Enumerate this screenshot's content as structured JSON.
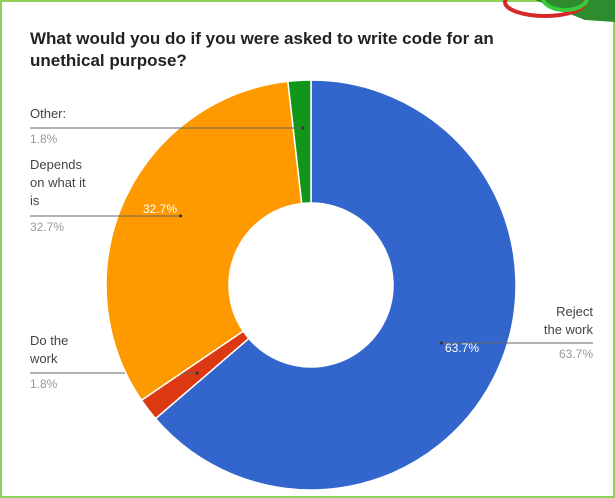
{
  "chart_data": {
    "type": "pie",
    "title": "What would you do if you were asked to write code for an unethical purpose?",
    "slices": [
      {
        "label_lines": [
          "Reject",
          "the work"
        ],
        "value": 63.7,
        "display": "63.7%",
        "color": "#3366cc",
        "inner_label": "63.7%"
      },
      {
        "label_lines": [
          "Do the",
          "work"
        ],
        "value": 1.8,
        "display": "1.8%",
        "color": "#dc3912",
        "inner_label": ""
      },
      {
        "label_lines": [
          "Depends",
          "on what it",
          "is"
        ],
        "value": 32.7,
        "display": "32.7%",
        "color": "#ff9900",
        "inner_label": "32.7%"
      },
      {
        "label_lines": [
          "Other:"
        ],
        "value": 1.8,
        "display": "1.8%",
        "color": "#109618",
        "inner_label": ""
      }
    ],
    "legend": "none",
    "donut": true
  }
}
